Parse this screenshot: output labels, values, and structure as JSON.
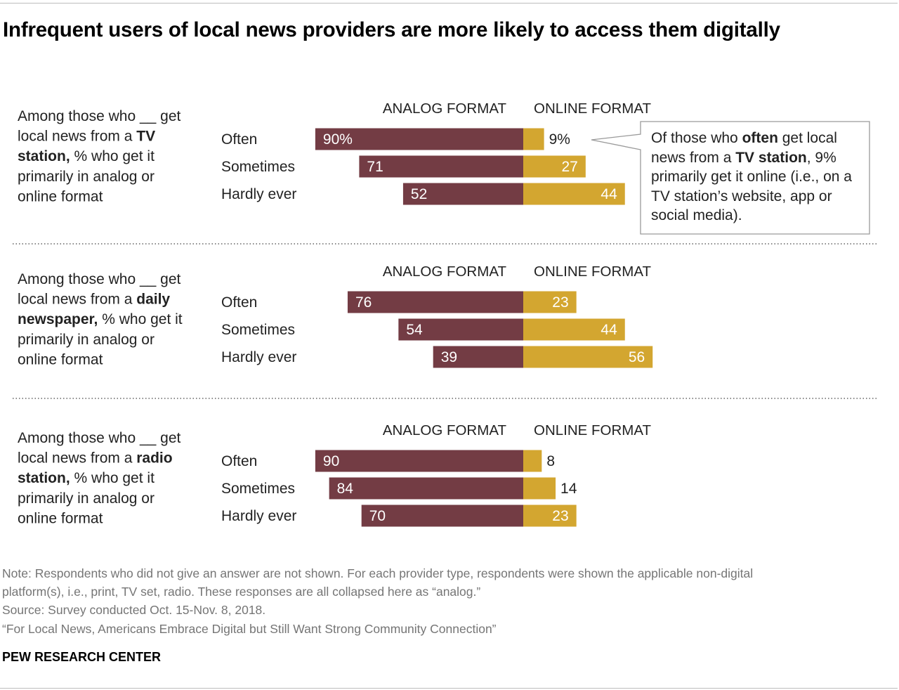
{
  "title": "Infrequent users of local news providers are more likely to access them digitally",
  "colors": {
    "analog": "#733c44",
    "online": "#d3a630",
    "divider": "#8a8a8a",
    "text": "#222222"
  },
  "callout": {
    "prefix": "Of those who ",
    "bold_1": "often",
    "middle": " get local news from a ",
    "bold_2": "TV station",
    "suffix": ", 9% primarily get it online (i.e., on a TV station’s website, app or social media)."
  },
  "chart_data": [
    {
      "type": "bar",
      "orientation": "horizontal-diverging",
      "description": {
        "prefix": "Among those who __ get local news from a ",
        "bold": "TV station",
        "suffix": ", % who get it primarily in analog or online format"
      },
      "column_headers": [
        "ANALOG FORMAT",
        "ONLINE FORMAT"
      ],
      "categories": [
        "Often",
        "Sometimes",
        "Hardly ever"
      ],
      "series": [
        {
          "name": "ANALOG FORMAT",
          "values": [
            90,
            71,
            52
          ],
          "labels": [
            "90%",
            "71",
            "52"
          ]
        },
        {
          "name": "ONLINE FORMAT",
          "values": [
            9,
            27,
            44
          ],
          "labels": [
            "9%",
            "27",
            "44"
          ]
        }
      ],
      "xlim": [
        0,
        100
      ]
    },
    {
      "type": "bar",
      "orientation": "horizontal-diverging",
      "description": {
        "prefix": "Among those who __ get local news from a ",
        "bold": "daily newspaper,",
        "suffix": " % who get it primarily in analog or online format"
      },
      "column_headers": [
        "ANALOG FORMAT",
        "ONLINE FORMAT"
      ],
      "categories": [
        "Often",
        "Sometimes",
        "Hardly ever"
      ],
      "series": [
        {
          "name": "ANALOG FORMAT",
          "values": [
            76,
            54,
            39
          ],
          "labels": [
            "76",
            "54",
            "39"
          ]
        },
        {
          "name": "ONLINE FORMAT",
          "values": [
            23,
            44,
            56
          ],
          "labels": [
            "23",
            "44",
            "56"
          ]
        }
      ],
      "xlim": [
        0,
        100
      ]
    },
    {
      "type": "bar",
      "orientation": "horizontal-diverging",
      "description": {
        "prefix": "Among those who __ get local news from a ",
        "bold": "radio station,",
        "suffix": " % who get it primarily in analog or online format"
      },
      "column_headers": [
        "ANALOG FORMAT",
        "ONLINE FORMAT"
      ],
      "categories": [
        "Often",
        "Sometimes",
        "Hardly ever"
      ],
      "series": [
        {
          "name": "ANALOG FORMAT",
          "values": [
            90,
            84,
            70
          ],
          "labels": [
            "90",
            "84",
            "70"
          ]
        },
        {
          "name": "ONLINE FORMAT",
          "values": [
            8,
            14,
            23
          ],
          "labels": [
            "8",
            "14",
            "23"
          ]
        }
      ],
      "xlim": [
        0,
        100
      ]
    }
  ],
  "footer": {
    "note_line_1": "Note: Respondents who did not give an answer are not shown. For each provider type, respondents were shown the applicable non-digital",
    "note_line_2": "platform(s), i.e., print, TV set, radio. These responses are all collapsed here as “analog.”",
    "source": "Source: Survey conducted Oct. 15-Nov. 8, 2018.",
    "citation": "“For Local News, Americans Embrace Digital but Still Want Strong Community Connection”",
    "organization": "PEW RESEARCH CENTER"
  }
}
